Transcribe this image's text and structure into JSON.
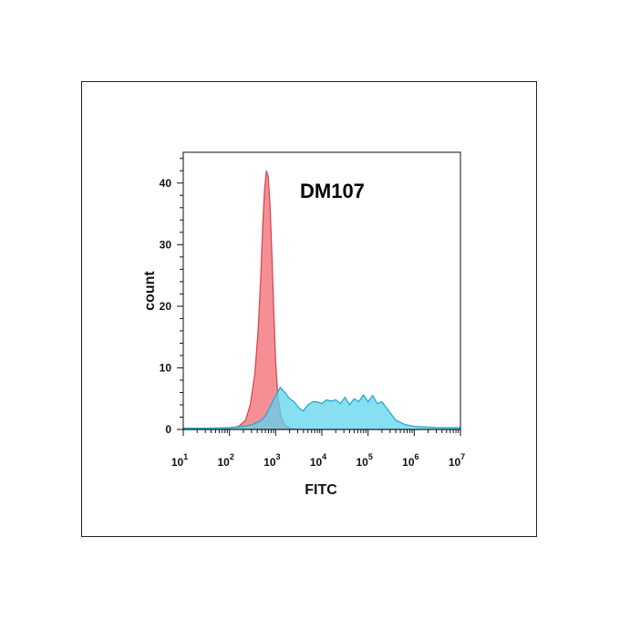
{
  "chart_data": {
    "type": "area",
    "title": "DM107",
    "xlabel": "FITC",
    "ylabel": "count",
    "x_scale": "log",
    "xlim": [
      1,
      7
    ],
    "ylim": [
      0,
      45
    ],
    "x_ticks": [
      {
        "base": "10",
        "exp": "1"
      },
      {
        "base": "10",
        "exp": "2"
      },
      {
        "base": "10",
        "exp": "3"
      },
      {
        "base": "10",
        "exp": "4"
      },
      {
        "base": "10",
        "exp": "5"
      },
      {
        "base": "10",
        "exp": "6"
      },
      {
        "base": "10",
        "exp": "7"
      }
    ],
    "y_ticks": [
      "0",
      "10",
      "20",
      "30",
      "40"
    ],
    "grid": false,
    "series": [
      {
        "color": "#f27d83",
        "stroke": "#d9474f",
        "x": [
          1.0,
          1.5,
          2.0,
          2.2,
          2.35,
          2.45,
          2.55,
          2.62,
          2.68,
          2.72,
          2.76,
          2.8,
          2.84,
          2.88,
          2.92,
          2.96,
          3.0,
          3.05,
          3.12,
          3.2,
          3.3,
          3.5,
          7.0
        ],
        "y": [
          0,
          0,
          0.2,
          0.5,
          1.5,
          4,
          9,
          16,
          25,
          33,
          39,
          42,
          41,
          36,
          28,
          19,
          11,
          5,
          2,
          0.7,
          0.2,
          0,
          0
        ]
      },
      {
        "color": "#5fd4ee",
        "stroke": "#26a9cf",
        "x": [
          1.0,
          1.5,
          2.0,
          2.3,
          2.5,
          2.7,
          2.8,
          2.9,
          3.0,
          3.1,
          3.2,
          3.3,
          3.4,
          3.5,
          3.6,
          3.7,
          3.8,
          3.9,
          4.0,
          4.1,
          4.2,
          4.3,
          4.4,
          4.5,
          4.6,
          4.7,
          4.8,
          4.9,
          5.0,
          5.1,
          5.2,
          5.3,
          5.4,
          5.5,
          5.6,
          5.8,
          6.0,
          6.5,
          7.0
        ],
        "y": [
          0.2,
          0.2,
          0.3,
          0.5,
          0.8,
          1.5,
          2.5,
          4,
          5.5,
          6.8,
          6,
          5,
          4.5,
          3.5,
          3,
          4,
          4.5,
          4.5,
          4.2,
          4.8,
          4.6,
          4.8,
          4.2,
          5.2,
          4.0,
          5.0,
          4.5,
          5.6,
          4.5,
          5.5,
          4.2,
          4.5,
          3.5,
          2.5,
          1.5,
          0.8,
          0.5,
          0.3,
          0.3
        ]
      }
    ]
  }
}
